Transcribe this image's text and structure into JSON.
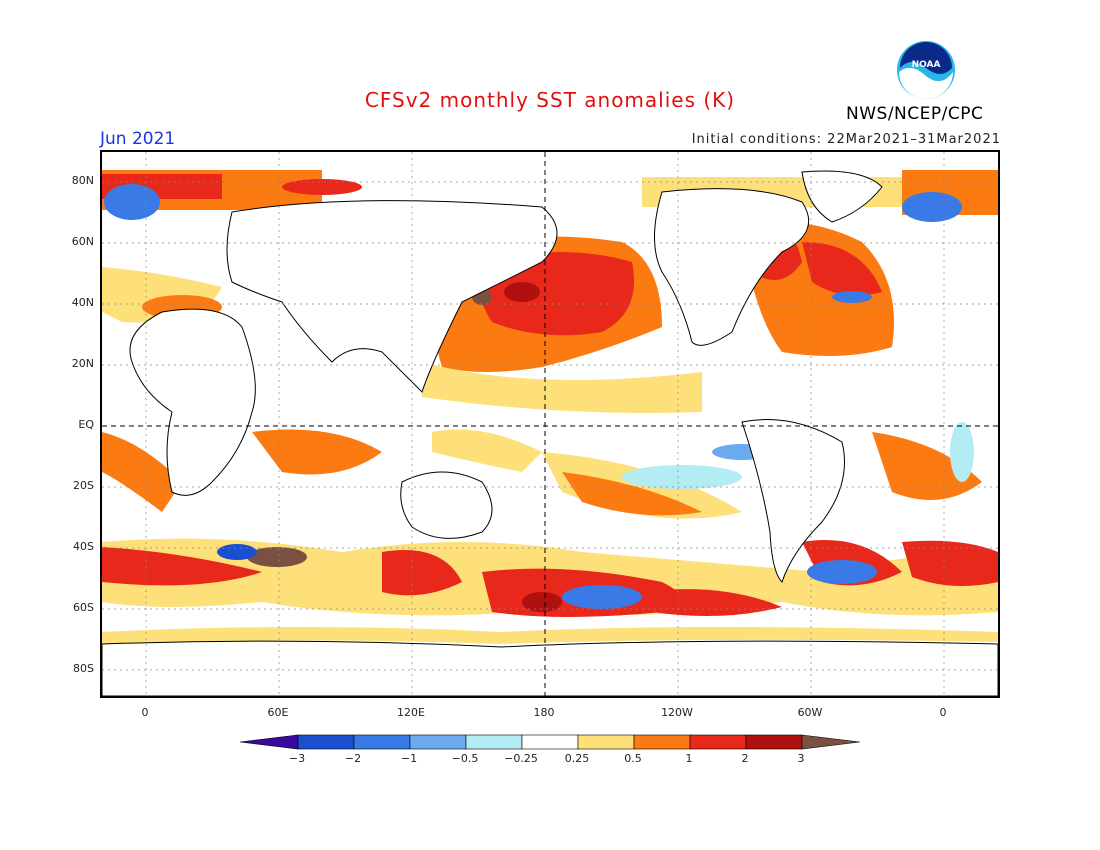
{
  "header": {
    "title": "CFSv2 monthly SST anomalies (K)",
    "month": "Jun 2021",
    "initial_conditions": "Initial conditions: 22Mar2021–31Mar2021",
    "agency": "NWS/NCEP/CPC",
    "logo_text": "NOAA"
  },
  "map": {
    "lat_labels": [
      "80N",
      "60N",
      "40N",
      "20N",
      "EQ",
      "20S",
      "40S",
      "60S",
      "80S"
    ],
    "lon_labels": [
      "0",
      "60E",
      "120E",
      "180",
      "120W",
      "60W",
      "0"
    ],
    "center_lon": "180"
  },
  "colorbar": {
    "labels": [
      "−3",
      "−2",
      "−1",
      "−0.5",
      "−0.25",
      "0.25",
      "0.5",
      "1",
      "2",
      "3"
    ],
    "colors": [
      "#3a0aa0",
      "#1a4fd0",
      "#3a7ae6",
      "#6aabf0",
      "#b4ecf4",
      "#ffffff",
      "#fde07a",
      "#fb7a12",
      "#e8281a",
      "#b01010",
      "#7a5040"
    ],
    "units": "K"
  }
}
